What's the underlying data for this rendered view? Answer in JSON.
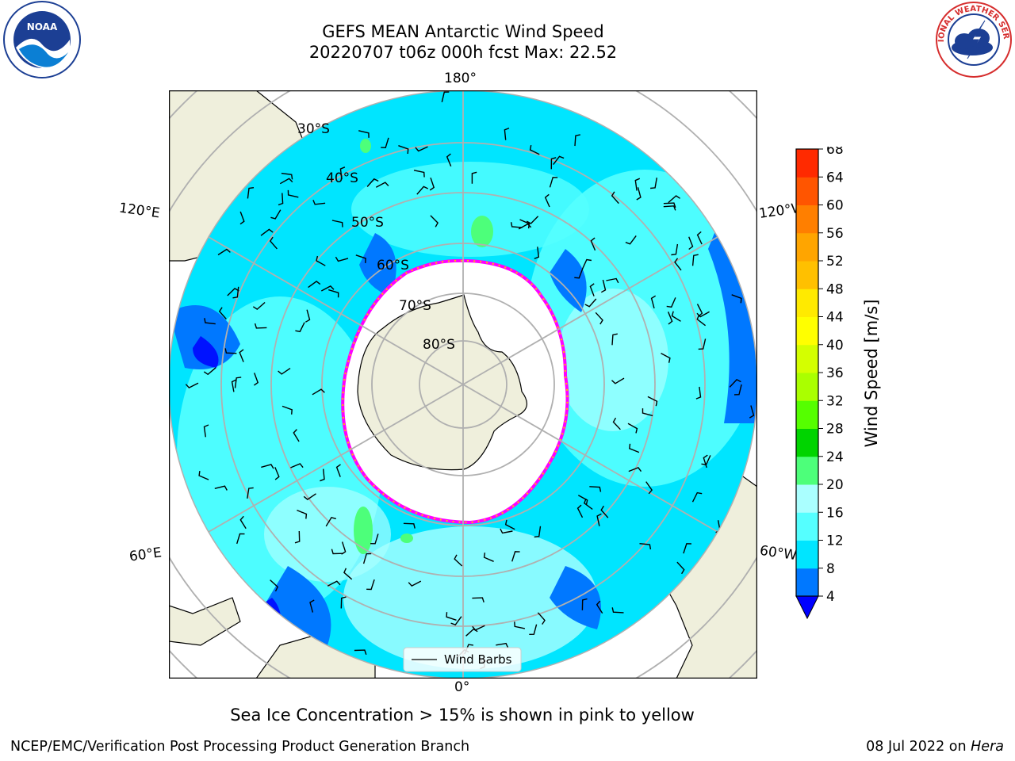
{
  "title": {
    "line1": "GEFS MEAN Antarctic Wind Speed",
    "line2": "20220707 t06z 000h fcst   Max: 22.52"
  },
  "logos": {
    "left": "noaa-logo",
    "left_text": "NOAA",
    "right": "national-weather-service-logo",
    "right_text": "NATIONAL WEATHER SERVICE"
  },
  "map": {
    "projection": "south-polar-stereographic",
    "longitude_labels": {
      "top": "180°",
      "bottom": "0°",
      "left_upper": "120°E",
      "left_lower": "60°E",
      "right_upper": "120°W",
      "right_lower": "60°W"
    },
    "latitude_labels": [
      "30°S",
      "40°S",
      "50°S",
      "60°S",
      "70°S",
      "80°S"
    ],
    "legend_label": "Wind Barbs",
    "colors": {
      "land": "#efefdc",
      "ocean_low": "#1e90ff",
      "ocean_mid": "#00ffff",
      "ice": "#ffffff",
      "ice_edge": "#ff00ff"
    }
  },
  "colorbar": {
    "label": "Wind Speed [m/s]",
    "ticks": [
      "4",
      "8",
      "12",
      "16",
      "20",
      "24",
      "28",
      "32",
      "36",
      "40",
      "44",
      "48",
      "52",
      "56",
      "60",
      "64",
      "68"
    ],
    "colors": [
      "#0078ff",
      "#00e5ff",
      "#55ffff",
      "#aaffff",
      "#4dff7a",
      "#00d400",
      "#55ff00",
      "#aaff00",
      "#d4ff00",
      "#ffff00",
      "#ffea00",
      "#ffc000",
      "#ffa500",
      "#ff7f00",
      "#ff5500",
      "#ff2a00",
      "#ff0000"
    ],
    "underflow_color": "#0000ff"
  },
  "caption": "Sea Ice Concentration > 15% is shown in pink to yellow",
  "footer": {
    "left": "NCEP/EMC/Verification Post Processing Product Generation Branch",
    "right_date": "08 Jul 2022 on",
    "right_host": "Hera"
  }
}
